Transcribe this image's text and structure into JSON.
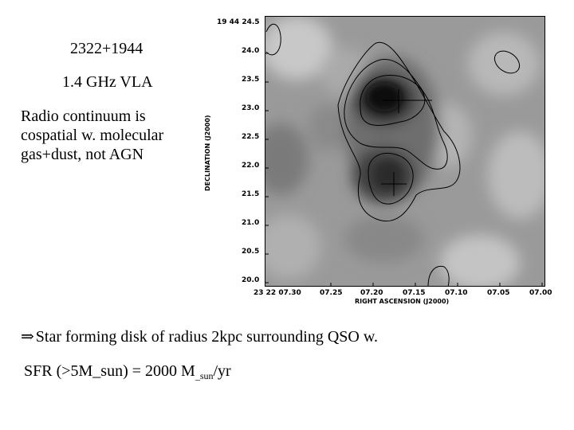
{
  "slide": {
    "source_name": "2322+1944",
    "frequency_label": "1.4 GHz VLA",
    "note_lines": [
      "Radio continuum is",
      "cospatial w. molecular",
      "gas+dust, not AGN"
    ],
    "bullet_arrow": "⇒",
    "bullet_text": "Star forming disk of radius 2kpc surrounding QSO w.",
    "sfr_prefix": "SFR (>5M_sun) = 2000 M",
    "sfr_subscript": "_sun",
    "sfr_suffix": "/yr"
  },
  "figure": {
    "dec_top_label": "19 44 24.5",
    "y_axis_label": "DECLINATION (J2000)",
    "x_axis_label": "RIGHT ASCENSION (J2000)",
    "y_ticks": [
      "24.0",
      "23.5",
      "23.0",
      "22.5",
      "22.0",
      "21.5",
      "21.0",
      "20.5",
      "20.0"
    ],
    "x_ticks": [
      "23 22 07.30",
      "07.25",
      "07.20",
      "07.15",
      "07.10",
      "07.05",
      "07.00"
    ]
  },
  "colors": {
    "background": "#ffffff",
    "text": "#000000"
  }
}
